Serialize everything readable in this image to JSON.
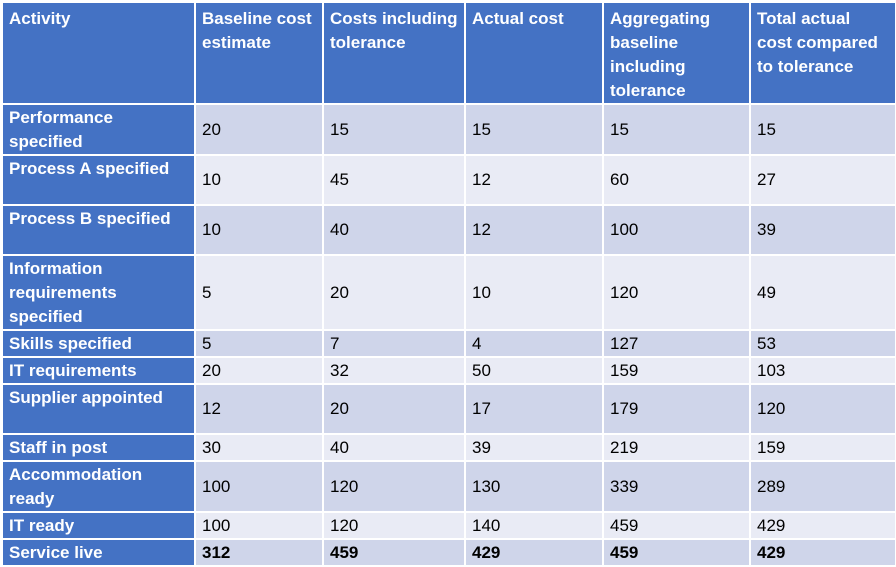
{
  "table": {
    "headers": [
      "Activity",
      "Baseline cost estimate",
      "Costs including tolerance",
      "Actual cost",
      "Aggregating baseline including tolerance",
      "Total actual cost compared to tolerance"
    ],
    "rows": [
      {
        "activity": "Performance specified",
        "cells": [
          "20",
          "15",
          "15",
          "15",
          "15"
        ]
      },
      {
        "activity": "Process A specified",
        "cells": [
          "10",
          "45",
          "12",
          "60",
          "27"
        ]
      },
      {
        "activity": "Process B specified",
        "cells": [
          "10",
          "40",
          "12",
          "100",
          "39"
        ]
      },
      {
        "activity": "Information requirements specified",
        "cells": [
          "5",
          "20",
          "10",
          "120",
          "49"
        ]
      },
      {
        "activity": "Skills specified",
        "cells": [
          "5",
          "7",
          "4",
          "127",
          "53"
        ]
      },
      {
        "activity": "IT requirements",
        "cells": [
          "20",
          "32",
          "50",
          "159",
          "103"
        ]
      },
      {
        "activity": "Supplier appointed",
        "cells": [
          "12",
          "20",
          "17",
          "179",
          "120"
        ]
      },
      {
        "activity": "Staff in post",
        "cells": [
          "30",
          "40",
          "39",
          "219",
          "159"
        ]
      },
      {
        "activity": "Accommodation ready",
        "cells": [
          "100",
          "120",
          "130",
          "339",
          "289"
        ]
      },
      {
        "activity": "IT ready",
        "cells": [
          "100",
          "120",
          "140",
          "459",
          "429"
        ]
      },
      {
        "activity": "Service live",
        "cells": [
          "312",
          "459",
          "429",
          "459",
          "429"
        ]
      }
    ]
  },
  "colors": {
    "header_bg": "#4472c4",
    "row_band_dark": "#cfd5ea",
    "row_band_light": "#e9ebf5"
  }
}
